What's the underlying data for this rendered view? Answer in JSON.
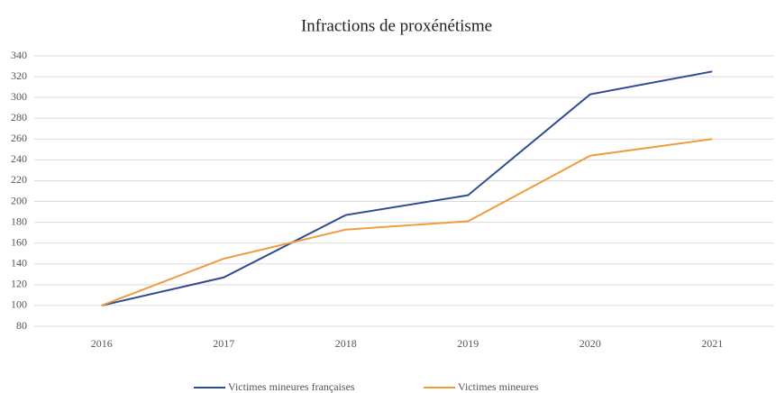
{
  "chart_data": {
    "type": "line",
    "title": "Infractions de proxénétisme",
    "categories": [
      "2016",
      "2017",
      "2018",
      "2019",
      "2020",
      "2021"
    ],
    "series": [
      {
        "name": "Victimes mineures françaises",
        "color": "#2f4b93",
        "values": [
          100,
          127,
          187,
          206,
          303,
          325
        ]
      },
      {
        "name": "Victimes mineures",
        "color": "#f09b3c",
        "values": [
          100,
          145,
          173,
          181,
          244,
          260
        ]
      }
    ],
    "ylim": [
      80,
      340
    ],
    "yticks": [
      80,
      100,
      120,
      140,
      160,
      180,
      200,
      220,
      240,
      260,
      280,
      300,
      320,
      340
    ],
    "grid": true,
    "legend": "bottom"
  }
}
